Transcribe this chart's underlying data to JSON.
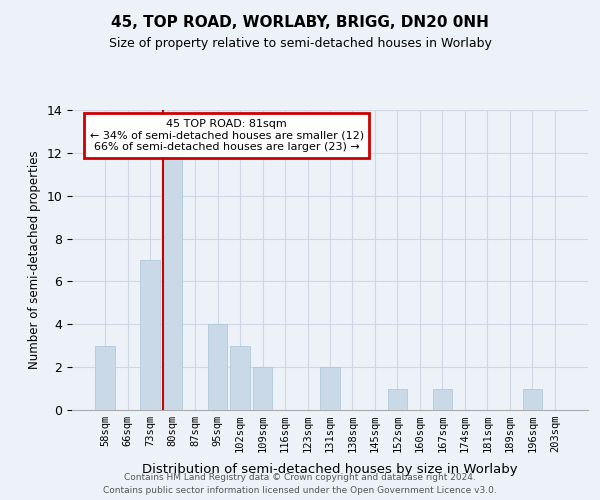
{
  "title": "45, TOP ROAD, WORLABY, BRIGG, DN20 0NH",
  "subtitle": "Size of property relative to semi-detached houses in Worlaby",
  "xlabel": "Distribution of semi-detached houses by size in Worlaby",
  "ylabel": "Number of semi-detached properties",
  "categories": [
    "58sqm",
    "66sqm",
    "73sqm",
    "80sqm",
    "87sqm",
    "95sqm",
    "102sqm",
    "109sqm",
    "116sqm",
    "123sqm",
    "131sqm",
    "138sqm",
    "145sqm",
    "152sqm",
    "160sqm",
    "167sqm",
    "174sqm",
    "181sqm",
    "189sqm",
    "196sqm",
    "203sqm"
  ],
  "values": [
    3,
    0,
    7,
    12,
    0,
    4,
    3,
    2,
    0,
    0,
    2,
    0,
    0,
    1,
    0,
    1,
    0,
    0,
    0,
    1,
    0
  ],
  "bar_color": "#c9d9e8",
  "bar_edge_color": "#a8c4d8",
  "highlight_index": 3,
  "annotation_title": "45 TOP ROAD: 81sqm",
  "annotation_line1": "← 34% of semi-detached houses are smaller (12)",
  "annotation_line2": "66% of semi-detached houses are larger (23) →",
  "annotation_box_color": "#ffffff",
  "annotation_box_edge": "#cc0000",
  "red_line_color": "#cc0000",
  "ylim": [
    0,
    14
  ],
  "yticks": [
    0,
    2,
    4,
    6,
    8,
    10,
    12,
    14
  ],
  "grid_color": "#d0d8e8",
  "bg_color": "#edf2f8",
  "footer1": "Contains HM Land Registry data © Crown copyright and database right 2024.",
  "footer2": "Contains public sector information licensed under the Open Government Licence v3.0."
}
